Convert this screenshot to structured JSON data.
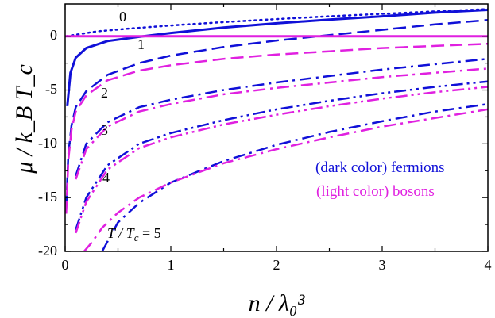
{
  "chart_data": {
    "type": "line",
    "xlabel": "n / λ₀³",
    "ylabel": "μ / k_B T_c",
    "xlim": [
      0,
      4
    ],
    "ylim": [
      -20,
      3
    ],
    "x_ticks": [
      "0",
      "1",
      "2",
      "3",
      "4"
    ],
    "y_ticks": [
      "0",
      "-5",
      "-10",
      "-15",
      "-20"
    ],
    "grid": false,
    "legend": {
      "placement": "right",
      "entries": [
        {
          "text": "(dark color) fermions",
          "color": "#1010d8"
        },
        {
          "text": "(light color) bosons",
          "color": "#e020e0"
        }
      ]
    },
    "curve_labels": [
      "0",
      "1",
      "2",
      "3",
      "4",
      "T / T",
      "c",
      " = 5"
    ],
    "colors": {
      "fermion": "#1010d8",
      "boson": "#e020e0"
    },
    "series": [
      {
        "group": "fermions",
        "T_over_Tc": 0,
        "style": "dotted",
        "x": [
          0.01,
          0.3,
          0.6,
          1.0,
          1.5,
          2.0,
          2.5,
          3.0,
          3.5,
          4.0
        ],
        "y": [
          0.0,
          0.45,
          0.71,
          1.0,
          1.31,
          1.59,
          1.85,
          2.08,
          2.31,
          2.52
        ]
      },
      {
        "group": "fermions",
        "T_over_Tc": 1,
        "style": "solid",
        "x": [
          0.02,
          0.05,
          0.1,
          0.2,
          0.4,
          0.7,
          1.0,
          1.5,
          2.0,
          2.5,
          3.0,
          3.5,
          4.0
        ],
        "y": [
          -6.5,
          -3.4,
          -2.0,
          -1.1,
          -0.45,
          -0.05,
          0.3,
          0.8,
          1.2,
          1.55,
          1.85,
          2.2,
          2.45
        ]
      },
      {
        "group": "fermions",
        "T_over_Tc": 2,
        "style": "dashed",
        "x": [
          0.01,
          0.03,
          0.06,
          0.1,
          0.2,
          0.4,
          0.7,
          1.0,
          1.5,
          2.0,
          2.5,
          3.0,
          3.5,
          4.0
        ],
        "y": [
          -16.0,
          -11.0,
          -8.3,
          -6.6,
          -5.1,
          -3.6,
          -2.5,
          -1.8,
          -1.0,
          -0.4,
          0.1,
          0.6,
          1.1,
          1.5
        ]
      },
      {
        "group": "fermions",
        "T_over_Tc": 3,
        "style": "dash-dot",
        "x": [
          0.1,
          0.2,
          0.4,
          0.7,
          1.0,
          1.5,
          2.0,
          2.5,
          3.0,
          3.5,
          4.0
        ],
        "y": [
          -13.0,
          -10.0,
          -8.0,
          -6.6,
          -5.9,
          -5.0,
          -4.3,
          -3.7,
          -3.1,
          -2.6,
          -2.1
        ]
      },
      {
        "group": "fermions",
        "T_over_Tc": 4,
        "style": "dash-dot-dot",
        "x": [
          0.1,
          0.2,
          0.4,
          0.7,
          1.0,
          1.5,
          2.0,
          2.5,
          3.0,
          3.5,
          4.0
        ],
        "y": [
          -18.0,
          -15.0,
          -12.0,
          -10.0,
          -9.0,
          -7.8,
          -6.8,
          -6.0,
          -5.3,
          -4.7,
          -4.2
        ]
      },
      {
        "group": "fermions",
        "T_over_Tc": 5,
        "style": "dash-dot",
        "x": [
          0.35,
          0.5,
          0.7,
          1.0,
          1.5,
          2.0,
          2.5,
          3.0,
          3.5,
          4.0
        ],
        "y": [
          -20.0,
          -17.3,
          -15.5,
          -13.6,
          -11.6,
          -10.1,
          -8.9,
          -7.9,
          -7.0,
          -6.3
        ]
      },
      {
        "group": "bosons",
        "T_over_Tc": 1,
        "style": "solid",
        "x": [
          0.0,
          4.0
        ],
        "y": [
          0.0,
          0.0
        ]
      },
      {
        "group": "bosons",
        "T_over_Tc": 2,
        "style": "dashed",
        "x": [
          0.01,
          0.03,
          0.06,
          0.1,
          0.2,
          0.4,
          0.7,
          1.0,
          1.5,
          2.0,
          2.5,
          3.0,
          3.5,
          4.0
        ],
        "y": [
          -16.5,
          -11.5,
          -8.7,
          -7.0,
          -5.5,
          -4.1,
          -3.2,
          -2.7,
          -2.1,
          -1.7,
          -1.4,
          -1.1,
          -0.9,
          -0.7
        ]
      },
      {
        "group": "bosons",
        "T_over_Tc": 3,
        "style": "dash-dot",
        "x": [
          0.1,
          0.2,
          0.4,
          0.7,
          1.0,
          1.5,
          2.0,
          2.5,
          3.0,
          3.5,
          4.0
        ],
        "y": [
          -13.3,
          -10.5,
          -8.4,
          -7.0,
          -6.3,
          -5.4,
          -4.8,
          -4.3,
          -3.8,
          -3.4,
          -3.0
        ]
      },
      {
        "group": "bosons",
        "T_over_Tc": 4,
        "style": "dash-dot-dot",
        "x": [
          0.1,
          0.2,
          0.4,
          0.7,
          1.0,
          1.5,
          2.0,
          2.5,
          3.0,
          3.5,
          4.0
        ],
        "y": [
          -18.3,
          -15.4,
          -12.4,
          -10.4,
          -9.4,
          -8.2,
          -7.3,
          -6.5,
          -5.8,
          -5.2,
          -4.7
        ]
      },
      {
        "group": "bosons",
        "T_over_Tc": 5,
        "style": "dash-dot",
        "x": [
          0.18,
          0.25,
          0.35,
          0.5,
          0.7,
          1.0,
          1.5,
          2.0,
          2.5,
          3.0,
          3.5,
          4.0
        ],
        "y": [
          -20.0,
          -19.2,
          -17.8,
          -16.4,
          -15.0,
          -13.6,
          -11.8,
          -10.5,
          -9.4,
          -8.4,
          -7.6,
          -6.8
        ]
      }
    ]
  }
}
